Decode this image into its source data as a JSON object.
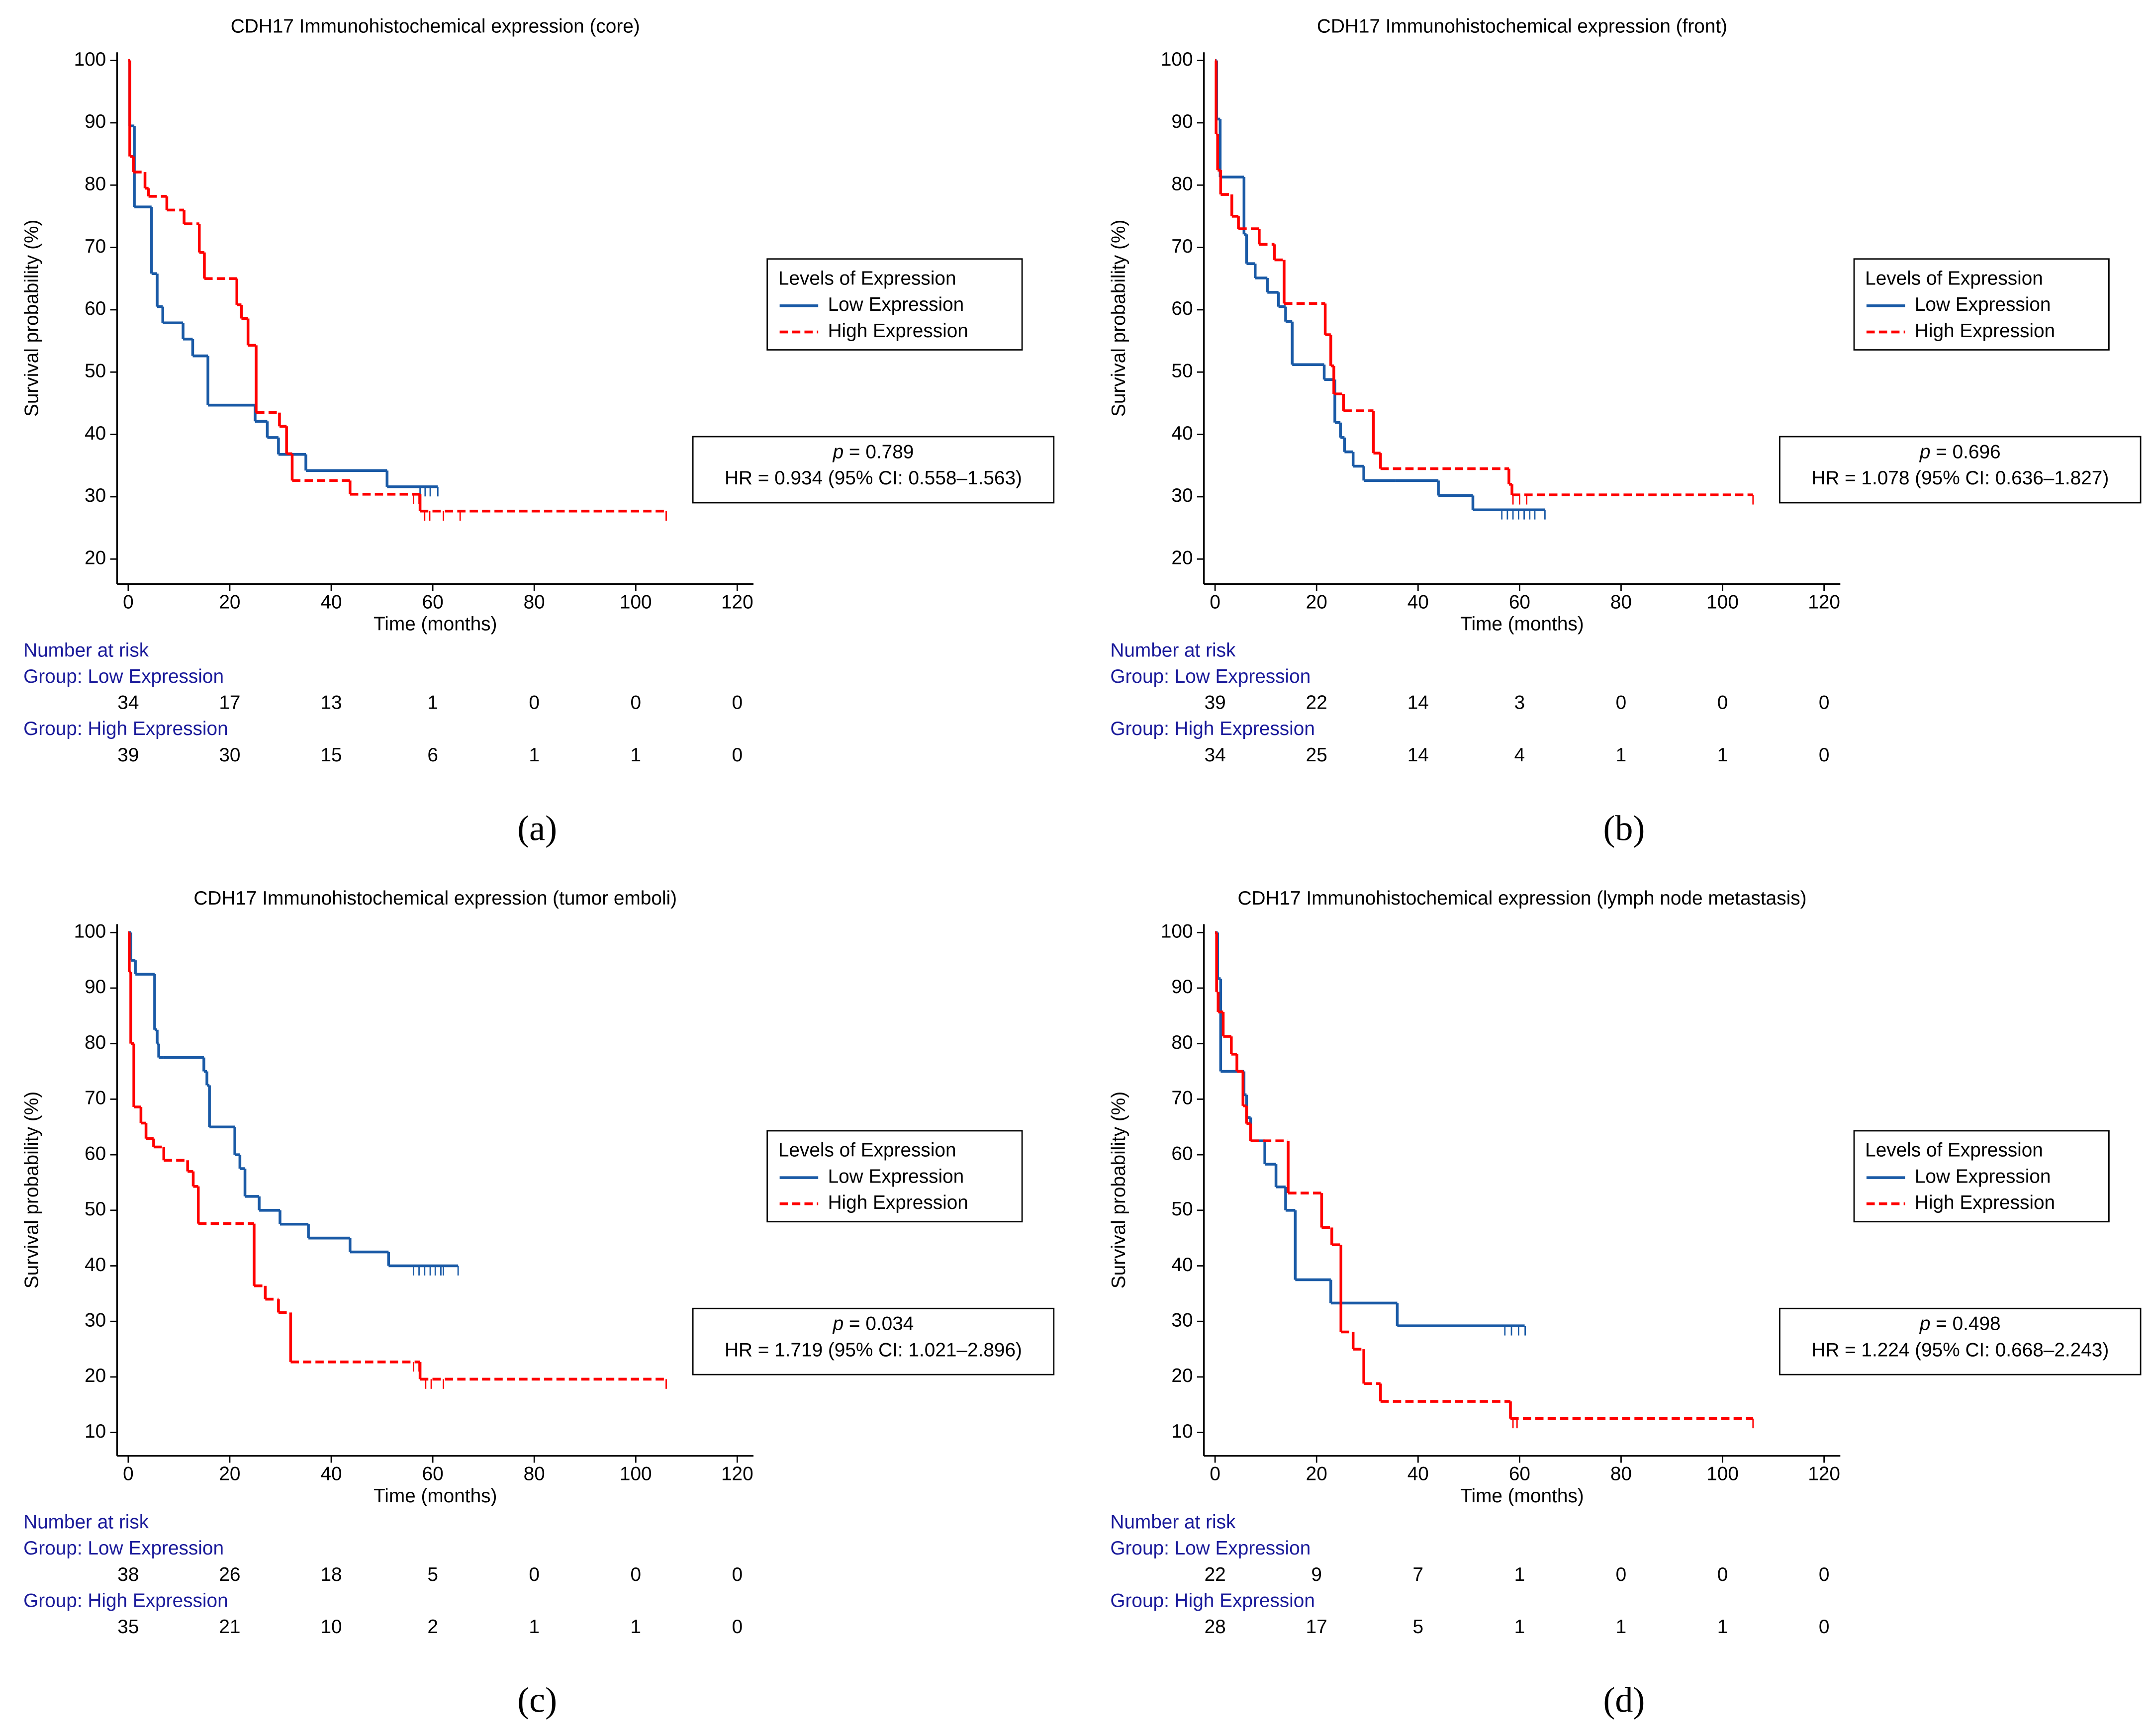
{
  "chart_data": [
    {
      "type": "step",
      "title": "CDH17 Immunohistochemical expression (core)",
      "xlabel": "Time (months)",
      "ylabel": "Survival probability (%)",
      "xlim": [
        -2.2,
        123.2
      ],
      "ylim": [
        16,
        101.3
      ],
      "xticks": [
        0,
        20,
        40,
        60,
        80,
        100,
        120
      ],
      "yticks": [
        20,
        30,
        40,
        50,
        60,
        70,
        80,
        90,
        100
      ],
      "legend": {
        "title": "Levels of Expression",
        "position": "right"
      },
      "series": [
        {
          "name": "Low Expression",
          "color": "#1a5aa6",
          "dashed": false,
          "x": [
            0,
            0.3,
            1.2,
            4.6,
            5.7,
            6.8,
            10.8,
            12.7,
            15.7,
            25,
            27.4,
            29.6,
            35,
            51,
            61
          ],
          "values": [
            100,
            89.5,
            76.5,
            65.8,
            60.5,
            57.9,
            55.3,
            52.6,
            44.7,
            42.1,
            39.5,
            36.8,
            34.2,
            31.6,
            31.6
          ],
          "censored": [
            57.5,
            58.5,
            59.5,
            61
          ]
        },
        {
          "name": "High Expression",
          "color": "#ff0000",
          "dashed": true,
          "x": [
            0,
            0.3,
            1,
            3.3,
            4,
            7.6,
            11,
            14,
            15,
            21.4,
            22.3,
            23.6,
            25.2,
            29.8,
            31.2,
            32.3,
            43.7,
            57.5,
            106
          ],
          "values": [
            100,
            84.6,
            82.1,
            79.5,
            78.2,
            76.0,
            73.8,
            69.2,
            65.0,
            60.8,
            58.6,
            54.3,
            43.5,
            41.3,
            36.9,
            32.6,
            30.4,
            27.7,
            27.7
          ],
          "censored": [
            56.2,
            57.3,
            58.4,
            59.4,
            62.1,
            65.4,
            106
          ]
        }
      ],
      "stats": {
        "p_symbol": "p",
        "p_value": " = 0.789",
        "hr": "HR = 0.934 (95% CI: 0.558–1.563)"
      },
      "risk_table": {
        "title": "Number at risk",
        "groups": [
          {
            "label": "Group: Low Expression",
            "counts": [
              34,
              17,
              13,
              1,
              0,
              0,
              0
            ]
          },
          {
            "label": "Group: High Expression",
            "counts": [
              39,
              30,
              15,
              6,
              1,
              1,
              0
            ]
          }
        ]
      },
      "panel_label": "(a)"
    },
    {
      "type": "step",
      "title": "CDH17 Immunohistochemical expression (front)",
      "xlabel": "Time (months)",
      "ylabel": "Survival probability (%)",
      "xlim": [
        -2.2,
        123.2
      ],
      "ylim": [
        16,
        101.3
      ],
      "xticks": [
        0,
        20,
        40,
        60,
        80,
        100,
        120
      ],
      "yticks": [
        20,
        30,
        40,
        50,
        60,
        70,
        80,
        90,
        100
      ],
      "legend": {
        "title": "Levels of Expression",
        "position": "right"
      },
      "series": [
        {
          "name": "Low Expression",
          "color": "#1a5aa6",
          "dashed": false,
          "x": [
            0,
            0.3,
            1,
            5.7,
            6.2,
            7.9,
            10.3,
            12.5,
            13.9,
            15.2,
            21.5,
            23.6,
            24.7,
            25.5,
            27.2,
            29.3,
            35.6,
            44,
            50.8,
            65
          ],
          "values": [
            100,
            90.6,
            81.3,
            72.1,
            67.4,
            65.1,
            62.8,
            60.5,
            58.1,
            51.2,
            48.8,
            41.9,
            39.5,
            37.2,
            34.9,
            32.6,
            32.6,
            30.2,
            27.9,
            27.9
          ],
          "censored": [
            56.5,
            57.6,
            58.7,
            59.8,
            60.9,
            62,
            63,
            65
          ]
        },
        {
          "name": "High Expression",
          "color": "#ff0000",
          "dashed": true,
          "x": [
            0,
            0.2,
            0.5,
            1.1,
            3.3,
            4.6,
            8.7,
            11.7,
            13.6,
            21.7,
            22.8,
            23.4,
            25.3,
            30.4,
            31.2,
            32.6,
            57.9,
            58.5,
            106
          ],
          "values": [
            100,
            88.2,
            82.4,
            78.5,
            75.0,
            73.0,
            70.5,
            68.0,
            61.0,
            56.0,
            51.0,
            46.5,
            43.8,
            43.8,
            37.0,
            34.5,
            32.0,
            30.3,
            30.3
          ],
          "censored": [
            58.7,
            60,
            61.4,
            106
          ]
        }
      ],
      "stats": {
        "p_symbol": "p",
        "p_value": " = 0.696",
        "hr": "HR = 1.078 (95% CI: 0.636–1.827)"
      },
      "risk_table": {
        "title": "Number at risk",
        "groups": [
          {
            "label": "Group: Low Expression",
            "counts": [
              39,
              22,
              14,
              3,
              0,
              0,
              0
            ]
          },
          {
            "label": "Group: High Expression",
            "counts": [
              34,
              25,
              14,
              4,
              1,
              1,
              0
            ]
          }
        ]
      },
      "panel_label": "(b)"
    },
    {
      "type": "step",
      "title": "CDH17 Immunohistochemical expression (tumor emboli)",
      "xlabel": "Time (months)",
      "ylabel": "Survival probability (%)",
      "xlim": [
        -2.2,
        123.2
      ],
      "ylim": [
        5.8,
        101.5
      ],
      "xticks": [
        0,
        20,
        40,
        60,
        80,
        100,
        120
      ],
      "yticks": [
        10,
        20,
        30,
        40,
        50,
        60,
        70,
        80,
        90,
        100
      ],
      "legend": {
        "title": "Levels of Expression",
        "position": "right"
      },
      "series": [
        {
          "name": "Low Expression",
          "color": "#1a5aa6",
          "dashed": false,
          "x": [
            0,
            0.5,
            1.4,
            5.2,
            5.7,
            6,
            7,
            14.9,
            15.5,
            16,
            21,
            22,
            23,
            25.8,
            29.9,
            35.5,
            43.7,
            51.3,
            65
          ],
          "values": [
            100,
            95,
            92.5,
            82.5,
            80,
            77.5,
            77.5,
            75,
            72.5,
            65,
            60,
            57.5,
            52.5,
            50,
            47.5,
            45,
            42.5,
            40,
            40
          ],
          "censored": [
            56.2,
            57.3,
            58.4,
            59.5,
            60.5,
            61.6,
            62.1,
            65
          ]
        },
        {
          "name": "High Expression",
          "color": "#ff0000",
          "dashed": true,
          "x": [
            0,
            0.2,
            0.5,
            1.1,
            2.5,
            3.5,
            5,
            7,
            11.7,
            12.8,
            13.8,
            24.8,
            27,
            29.6,
            32,
            57.5,
            106
          ],
          "values": [
            100,
            92.9,
            80,
            68.6,
            65.7,
            62.9,
            61.4,
            59.0,
            57.0,
            54.3,
            47.6,
            36.4,
            34.0,
            31.6,
            22.7,
            19.6,
            19.6
          ],
          "censored": [
            56.2,
            57.3,
            58.6,
            59.7,
            62.1,
            106
          ]
        }
      ],
      "stats": {
        "p_symbol": "p",
        "p_value": " = 0.034",
        "hr": "HR = 1.719 (95% CI: 1.021–2.896)"
      },
      "risk_table": {
        "title": "Number at risk",
        "groups": [
          {
            "label": "Group: Low Expression",
            "counts": [
              38,
              26,
              18,
              5,
              0,
              0,
              0
            ]
          },
          {
            "label": "Group: High Expression",
            "counts": [
              35,
              21,
              10,
              2,
              1,
              1,
              0
            ]
          }
        ]
      },
      "panel_label": "(c)"
    },
    {
      "type": "step",
      "title": "CDH17 Immunohistochemical expression (lymph node metastasis)",
      "xlabel": "Time (months)",
      "ylabel": "Survival probability (%)",
      "xlim": [
        -2.2,
        123.2
      ],
      "ylim": [
        5.8,
        101.5
      ],
      "xticks": [
        0,
        20,
        40,
        60,
        80,
        100,
        120
      ],
      "yticks": [
        10,
        20,
        30,
        40,
        50,
        60,
        70,
        80,
        90,
        100
      ],
      "legend": {
        "title": "Levels of Expression",
        "position": "right"
      },
      "series": [
        {
          "name": "Low Expression",
          "color": "#1a5aa6",
          "dashed": false,
          "x": [
            0,
            0.5,
            1.1,
            5.7,
            6.2,
            7,
            9.8,
            12,
            13.9,
            15.8,
            22.8,
            35.9,
            61
          ],
          "values": [
            100,
            91.7,
            75,
            70.8,
            66.7,
            62.5,
            58.3,
            54.2,
            50,
            37.5,
            33.3,
            29.2,
            29.2
          ],
          "censored": [
            57.1,
            58.4,
            59.8,
            61.1
          ]
        },
        {
          "name": "High Expression",
          "color": "#ff0000",
          "dashed": true,
          "x": [
            0,
            0.3,
            0.6,
            1.6,
            3.2,
            4.3,
            5.5,
            6.2,
            7,
            14.4,
            21,
            23,
            24.8,
            27.2,
            29.3,
            32.6,
            58.2,
            106
          ],
          "values": [
            100,
            89.3,
            85.7,
            81.3,
            78.1,
            75,
            68.8,
            65.6,
            62.5,
            53.1,
            46.9,
            43.8,
            28.1,
            25,
            18.8,
            15.6,
            12.5,
            12.5
          ],
          "censored": [
            58.7,
            59.5,
            106
          ]
        }
      ],
      "stats": {
        "p_symbol": "p",
        "p_value": " = 0.498",
        "hr": "HR = 1.224 (95% CI: 0.668–2.243)"
      },
      "risk_table": {
        "title": "Number at risk",
        "groups": [
          {
            "label": "Group: Low Expression",
            "counts": [
              22,
              9,
              7,
              1,
              0,
              0,
              0
            ]
          },
          {
            "label": "Group: High Expression",
            "counts": [
              28,
              17,
              5,
              1,
              1,
              1,
              0
            ]
          }
        ]
      },
      "panel_label": "(d)"
    }
  ]
}
